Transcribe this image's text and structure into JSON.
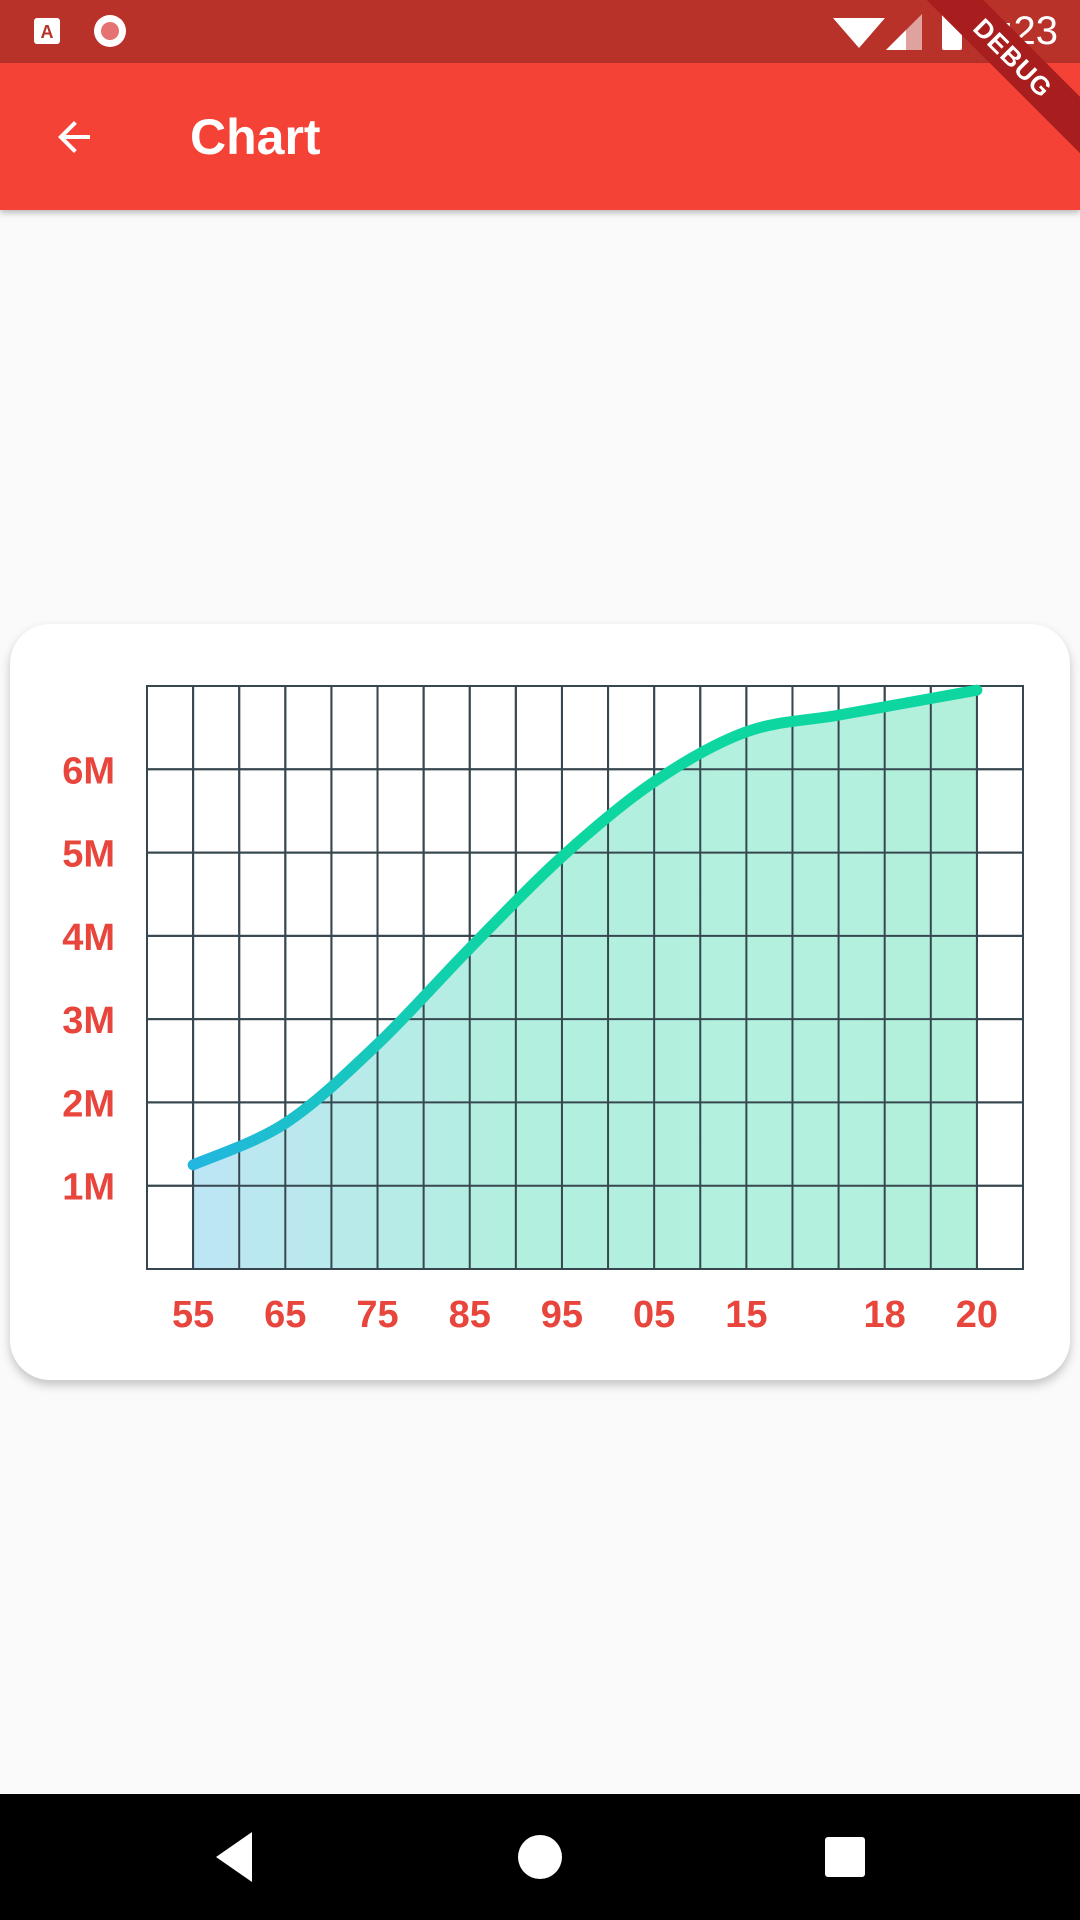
{
  "status_bar": {
    "time": "1:23",
    "left_icons": [
      "app-a-icon",
      "record-icon"
    ],
    "right_icons": [
      "wifi-icon",
      "cell-signal-icon",
      "battery-icon"
    ],
    "debug_label": "DEBUG"
  },
  "app_bar": {
    "title": "Chart",
    "back_icon": "arrow-back-icon"
  },
  "colors": {
    "app_bar": "#f44336",
    "status_bar": "#b8322a",
    "axis_labels": "#e8453c",
    "grid": "#37474f",
    "line_start": "#23b6e0",
    "line_end": "#0dd6a0"
  },
  "chart_data": {
    "type": "area",
    "title": "",
    "xlabel": "",
    "ylabel": "",
    "x_ticks": [
      "55",
      "65",
      "75",
      "85",
      "95",
      "05",
      "15",
      "18",
      "20"
    ],
    "y_ticks": [
      "1M",
      "2M",
      "3M",
      "4M",
      "5M",
      "6M"
    ],
    "ylim": [
      0,
      7000000
    ],
    "grid": true,
    "legend": "none",
    "series": [
      {
        "x_index": [
          0,
          2,
          4,
          6,
          8,
          10,
          12,
          14,
          16,
          17
        ],
        "values": [
          1250000,
          1750000,
          2700000,
          3850000,
          4950000,
          5850000,
          6450000,
          6650000,
          6850000,
          6950000
        ]
      }
    ]
  },
  "nav_bar": {
    "back_icon": "nav-back-icon",
    "home_icon": "nav-home-icon",
    "recents_icon": "nav-recents-icon"
  }
}
